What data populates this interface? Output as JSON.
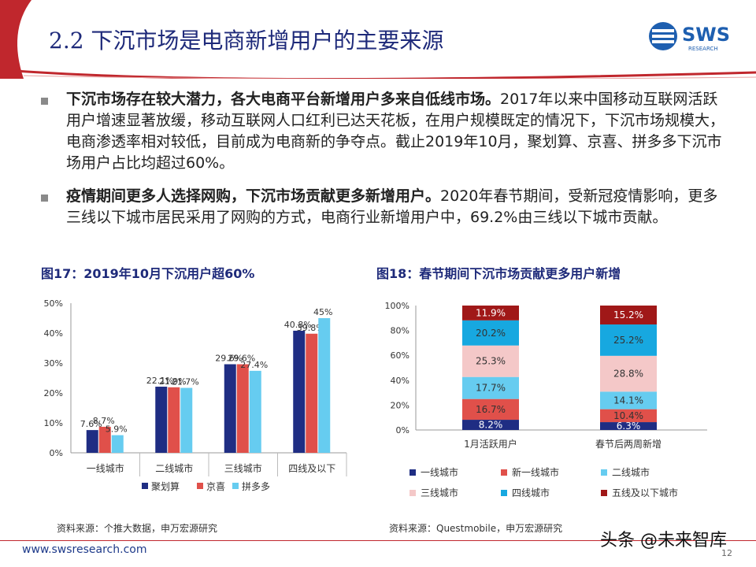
{
  "header": {
    "title": "2.2 下沉市场是电商新增用户的主要来源",
    "logo_text": "SWS",
    "logo_sub": "RESEARCH"
  },
  "bullets": [
    {
      "bold": "下沉市场存在较大潜力，各大电商平台新增用户多来自低线市场。",
      "text": "2017年以来中国移动互联网活跃用户增速显著放缓，移动互联网人口红利已达天花板，在用户规模既定的情况下，下沉市场规模大，电商渗透率相对较低，目前成为电商新的争夺点。截止2019年10月，聚划算、京喜、拼多多下沉市场用户占比均超过60%。"
    },
    {
      "bold": "疫情期间更多人选择网购，下沉市场贡献更多新增用户。",
      "text": "2020年春节期间，受新冠疫情影响，更多三线以下城市居民采用了网购的方式，电商行业新增用户中，69.2%由三线以下城市贡献。"
    }
  ],
  "fig17": {
    "title": "图17：2019年10月下沉用户超60%",
    "source": "资料来源：个推大数据，申万宏源研究"
  },
  "fig18": {
    "title": "图18：春节期间下沉市场贡献更多用户新增",
    "source": "资料来源：Questmobile，申万宏源研究"
  },
  "footer": {
    "url": "www.swsresearch.com",
    "page": "12",
    "watermark": "头条 @未来智库"
  },
  "colors": {
    "navy": "#1f2d83",
    "red": "#e0504a",
    "lightblue": "#66ccf0",
    "blue": "#17a8e0",
    "pink": "#f4c8c8",
    "darkred": "#a01818",
    "brand": "#1e2a7a"
  },
  "chart_data": [
    {
      "type": "bar",
      "title": "图17：2019年10月下沉用户超60%",
      "categories": [
        "一线城市",
        "二线城市",
        "三线城市",
        "四线及以下"
      ],
      "series": [
        {
          "name": "聚划算",
          "values": [
            7.6,
            22.1,
            29.6,
            40.8
          ],
          "labels": [
            "7.6%",
            "22.1%",
            "29.6%",
            "40.8%"
          ]
        },
        {
          "name": "京喜",
          "values": [
            8.7,
            21.9,
            29.6,
            39.8
          ],
          "labels": [
            "8.7%",
            "21.9%",
            "29.6%",
            "39.8%"
          ]
        },
        {
          "name": "拼多多",
          "values": [
            5.9,
            21.7,
            27.4,
            45
          ],
          "labels": [
            "5.9%",
            "21.7%",
            "27.4%",
            "45%"
          ]
        }
      ],
      "ylim": [
        0,
        50
      ],
      "yticks": [
        "0%",
        "10%",
        "20%",
        "30%",
        "40%",
        "50%"
      ],
      "legend": "bottom"
    },
    {
      "type": "bar",
      "stacked": true,
      "title": "图18：春节期间下沉市场贡献更多用户新增",
      "categories": [
        "1月活跃用户",
        "春节后两周新增"
      ],
      "series": [
        {
          "name": "一线城市",
          "values": [
            8.2,
            6.3
          ],
          "labels": [
            "8.2%",
            "6.3%"
          ]
        },
        {
          "name": "新一线城市",
          "values": [
            16.7,
            10.4
          ],
          "labels": [
            "16.7%",
            "10.4%"
          ]
        },
        {
          "name": "二线城市",
          "values": [
            17.7,
            14.1
          ],
          "labels": [
            "17.7%",
            "14.1%"
          ]
        },
        {
          "name": "三线城市",
          "values": [
            25.3,
            28.8
          ],
          "labels": [
            "25.3%",
            "28.8%"
          ]
        },
        {
          "name": "四线城市",
          "values": [
            20.2,
            25.2
          ],
          "labels": [
            "20.2%",
            "25.2%"
          ]
        },
        {
          "name": "五线及以下城市",
          "values": [
            11.9,
            15.2
          ],
          "labels": [
            "11.9%",
            "15.2%"
          ]
        }
      ],
      "ylim": [
        0,
        100
      ],
      "yticks": [
        "0%",
        "20%",
        "40%",
        "60%",
        "80%",
        "100%"
      ],
      "legend": "bottom"
    }
  ]
}
